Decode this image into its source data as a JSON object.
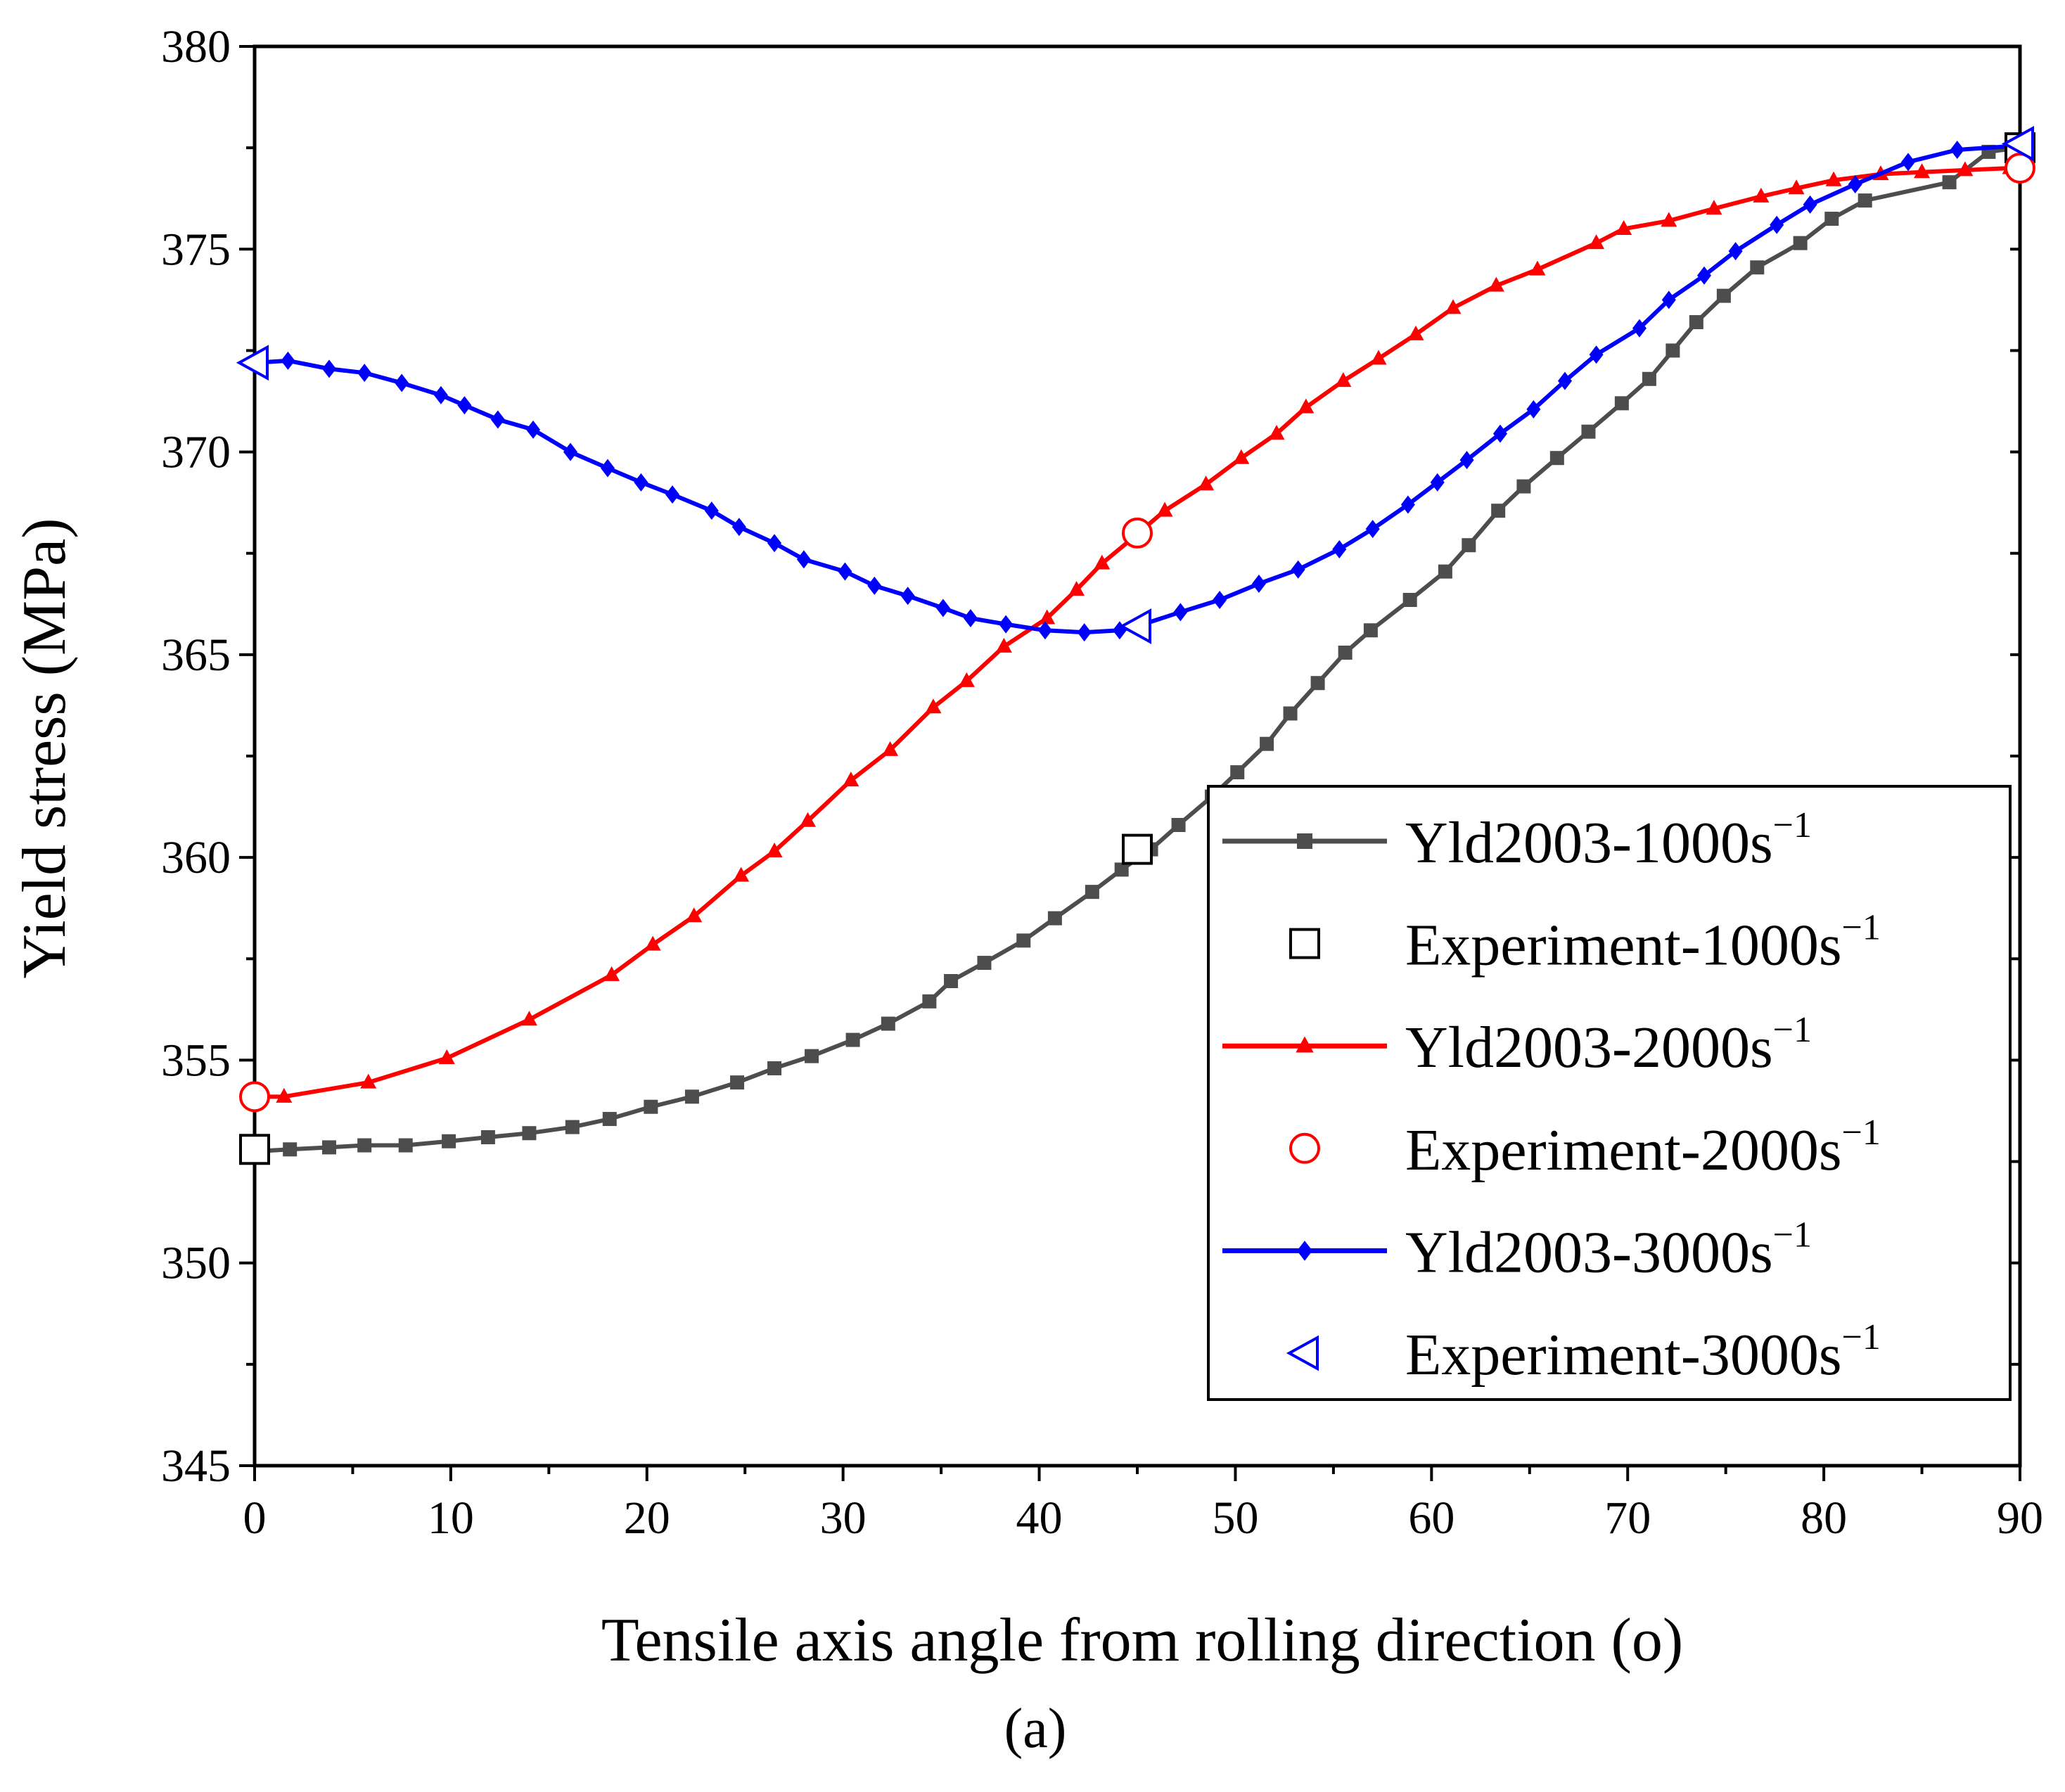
{
  "chart_data": {
    "type": "line",
    "title": "",
    "xlabel": "Tensile axis angle from rolling direction (o)",
    "ylabel": "Yield stress (MPa)",
    "panel_label": "(a)",
    "xlim": [
      0,
      90
    ],
    "ylim": [
      345,
      380
    ],
    "xticks": [
      0,
      10,
      20,
      30,
      40,
      50,
      60,
      70,
      80,
      90
    ],
    "yticks": [
      345,
      350,
      355,
      360,
      365,
      370,
      375,
      380
    ],
    "legend_position": "center-right",
    "series": [
      {
        "name": "Yld2003-1000s",
        "name_sup": "−1",
        "kind": "model",
        "color": "#4d4d4d",
        "marker": "square",
        "x": [
          0,
          1.8,
          3.8,
          5.6,
          7.7,
          9.9,
          11.9,
          14,
          16.2,
          18.1,
          20.2,
          22.3,
          24.6,
          26.5,
          28.4,
          30.5,
          32.3,
          34.4,
          35.5,
          37.2,
          39.2,
          40.8,
          42.7,
          44.2,
          45.7,
          47.1,
          48.8,
          50.1,
          51.6,
          52.8,
          54.2,
          55.6,
          56.9,
          58.9,
          60.7,
          61.9,
          63.4,
          64.7,
          66.4,
          68,
          69.7,
          71.1,
          72.3,
          73.5,
          74.9,
          76.6,
          78.8,
          80.4,
          82.1,
          86.4,
          88.4,
          89.9
        ],
        "y": [
          352.75,
          352.8,
          352.85,
          352.9,
          352.9,
          353,
          353.1,
          353.2,
          353.35,
          353.55,
          353.85,
          354.1,
          354.45,
          354.8,
          355.1,
          355.5,
          355.9,
          356.45,
          356.95,
          357.4,
          357.95,
          358.5,
          359.15,
          359.7,
          360.2,
          360.8,
          361.5,
          362.1,
          362.8,
          363.55,
          364.3,
          365.05,
          365.6,
          366.35,
          367.05,
          367.7,
          368.55,
          369.15,
          369.85,
          370.5,
          371.2,
          371.8,
          372.5,
          373.2,
          373.85,
          374.55,
          375.15,
          375.75,
          376.2,
          376.65,
          377.4,
          377.5
        ]
      },
      {
        "name": "Experiment-1000s",
        "name_sup": "−1",
        "kind": "experiment",
        "color": "#000000",
        "marker": "open-square",
        "x": [
          0,
          45,
          90
        ],
        "y": [
          352.8,
          360.2,
          377.5
        ]
      },
      {
        "name": "Yld2003-2000s",
        "name_sup": "−1",
        "kind": "model",
        "color": "#ff0000",
        "marker": "triangle",
        "x": [
          0,
          1.5,
          5.8,
          9.8,
          14,
          18.2,
          20.3,
          22.4,
          24.8,
          26.5,
          28.2,
          30.4,
          32.4,
          34.6,
          36.3,
          38.2,
          40.4,
          41.9,
          43.2,
          44.7,
          46.4,
          48.5,
          50.3,
          52.1,
          53.6,
          55.5,
          57.3,
          59.2,
          61.1,
          63.3,
          65.4,
          68.4,
          69.8,
          72.1,
          74.4,
          76.8,
          78.6,
          80.5,
          82.9,
          85,
          87.2,
          89.5
        ],
        "y": [
          354.1,
          354.1,
          354.45,
          355.05,
          356,
          357.1,
          357.85,
          358.55,
          359.55,
          360.15,
          360.9,
          361.9,
          362.65,
          363.7,
          364.35,
          365.2,
          365.9,
          366.6,
          367.25,
          367.85,
          368.55,
          369.2,
          369.85,
          370.45,
          371.1,
          371.75,
          372.3,
          372.9,
          373.55,
          374.1,
          374.5,
          375.15,
          375.5,
          375.7,
          376.0,
          376.3,
          376.5,
          376.7,
          376.85,
          376.9,
          376.95,
          377.0
        ]
      },
      {
        "name": "Experiment-2000s",
        "name_sup": "−1",
        "kind": "experiment",
        "color": "#ff0000",
        "marker": "open-circle",
        "x": [
          0,
          45,
          90
        ],
        "y": [
          354.1,
          368.0,
          377.0
        ]
      },
      {
        "name": "Yld2003-3000s",
        "name_sup": "−1",
        "kind": "model",
        "color": "#0000ff",
        "marker": "diamond",
        "x": [
          0,
          1.7,
          3.8,
          5.6,
          7.5,
          9.5,
          10.7,
          12.4,
          14.2,
          16.1,
          18,
          19.7,
          21.3,
          23.3,
          24.7,
          26.5,
          28,
          30.1,
          31.6,
          33.3,
          35.1,
          36.5,
          38.3,
          40.3,
          42.3,
          44.1,
          45.3,
          47.2,
          49.2,
          51.2,
          53.2,
          55.3,
          57,
          58.8,
          60.3,
          61.8,
          63.5,
          65.2,
          66.8,
          68.4,
          70.6,
          72.1,
          73.9,
          75.5,
          77.6,
          79.3,
          81.6,
          84.3,
          86.8,
          89.9
        ],
        "y": [
          372.2,
          372.25,
          372.05,
          371.95,
          371.7,
          371.4,
          371.15,
          370.8,
          370.55,
          370.0,
          369.6,
          369.25,
          368.95,
          368.55,
          368.15,
          367.75,
          367.35,
          367.05,
          366.7,
          366.45,
          366.15,
          365.9,
          365.75,
          365.6,
          365.55,
          365.6,
          365.75,
          366.05,
          366.35,
          366.75,
          367.1,
          367.6,
          368.1,
          368.7,
          369.25,
          369.8,
          370.45,
          371.05,
          371.75,
          372.4,
          373.05,
          373.75,
          374.35,
          374.95,
          375.6,
          376.1,
          376.6,
          377.15,
          377.45,
          377.55
        ]
      },
      {
        "name": "Experiment-3000s",
        "name_sup": "−1",
        "kind": "experiment",
        "color": "#0000ff",
        "marker": "open-triangle-left",
        "x": [
          0,
          45,
          90
        ],
        "y": [
          372.2,
          365.7,
          377.6
        ]
      }
    ]
  }
}
